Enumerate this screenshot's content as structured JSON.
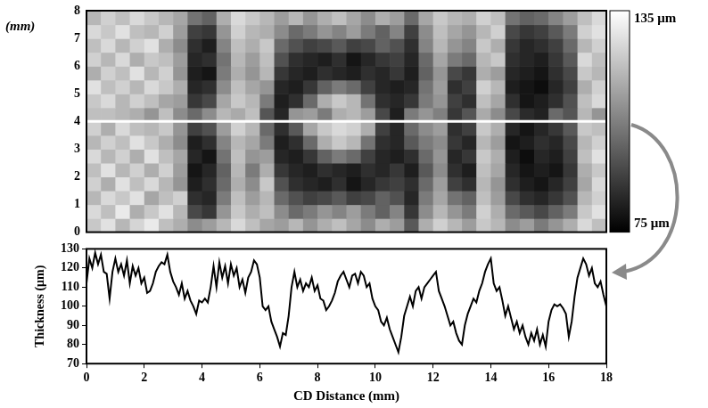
{
  "chart_data": [
    {
      "type": "heatmap",
      "ylabel": "(mm)",
      "xlim": [
        0,
        18
      ],
      "ylim": [
        0,
        8
      ],
      "yticks": [
        0,
        1,
        2,
        3,
        4,
        5,
        6,
        7,
        8
      ],
      "tick_labels": "y",
      "grid": false,
      "profile_y": 4,
      "color_range": [
        75,
        135
      ],
      "color_ticks": [
        {
          "value": 135,
          "label": "135 μm"
        },
        {
          "value": 75,
          "label": "75 μm"
        }
      ],
      "cells": [
        [
          122,
          128,
          118,
          125,
          130,
          120,
          116,
          108,
          112,
          118,
          126,
          120,
          114,
          112,
          118,
          110,
          116,
          120,
          114,
          108,
          116,
          112,
          96,
          116,
          124,
          118,
          112,
          122,
          118,
          108,
          112,
          104,
          110,
          116,
          126,
          120
        ],
        [
          126,
          120,
          130,
          116,
          122,
          128,
          118,
          92,
          88,
          110,
          122,
          116,
          120,
          108,
          100,
          104,
          110,
          106,
          112,
          104,
          98,
          106,
          88,
          108,
          118,
          110,
          104,
          124,
          116,
          100,
          96,
          92,
          98,
          104,
          122,
          128
        ],
        [
          118,
          126,
          122,
          128,
          114,
          120,
          124,
          86,
          84,
          104,
          120,
          112,
          118,
          100,
          94,
          90,
          92,
          96,
          90,
          92,
          98,
          94,
          84,
          104,
          114,
          102,
          98,
          120,
          112,
          92,
          86,
          84,
          88,
          94,
          118,
          124
        ],
        [
          124,
          116,
          128,
          120,
          126,
          118,
          110,
          82,
          86,
          100,
          116,
          108,
          122,
          94,
          86,
          84,
          82,
          86,
          80,
          84,
          88,
          90,
          86,
          100,
          112,
          90,
          86,
          118,
          110,
          86,
          82,
          80,
          84,
          90,
          114,
          126
        ],
        [
          120,
          128,
          118,
          124,
          116,
          124,
          112,
          80,
          84,
          98,
          118,
          104,
          116,
          88,
          84,
          82,
          86,
          84,
          82,
          86,
          84,
          88,
          82,
          96,
          108,
          86,
          82,
          120,
          114,
          84,
          80,
          82,
          80,
          88,
          116,
          122
        ],
        [
          126,
          118,
          124,
          116,
          128,
          120,
          114,
          84,
          80,
          102,
          120,
          110,
          112,
          84,
          82,
          88,
          98,
          104,
          100,
          90,
          84,
          82,
          86,
          100,
          110,
          84,
          88,
          122,
          116,
          82,
          78,
          84,
          82,
          90,
          120,
          128
        ],
        [
          118,
          124,
          120,
          128,
          122,
          116,
          108,
          82,
          86,
          106,
          118,
          114,
          104,
          82,
          86,
          100,
          116,
          122,
          118,
          102,
          86,
          84,
          96,
          104,
          108,
          88,
          84,
          118,
          112,
          80,
          82,
          86,
          84,
          92,
          118,
          124
        ],
        [
          124,
          116,
          126,
          120,
          118,
          122,
          110,
          90,
          94,
          112,
          124,
          118,
          100,
          86,
          96,
          114,
          122,
          126,
          124,
          116,
          90,
          84,
          100,
          108,
          112,
          86,
          90,
          122,
          116,
          84,
          80,
          84,
          88,
          96,
          122,
          120
        ],
        [
          120,
          120,
          118,
          116,
          110,
          120,
          108,
          100,
          108,
          118,
          115,
          120,
          95,
          84,
          110,
          112,
          104,
          116,
          118,
          112,
          92,
          82,
          104,
          110,
          105,
          88,
          95,
          115,
          108,
          92,
          85,
          83,
          100,
          95,
          118,
          110
        ],
        [
          122,
          126,
          118,
          124,
          120,
          114,
          112,
          88,
          92,
          114,
          122,
          118,
          104,
          82,
          86,
          100,
          116,
          122,
          118,
          102,
          86,
          84,
          88,
          104,
          110,
          90,
          86,
          120,
          114,
          86,
          80,
          82,
          86,
          94,
          120,
          126
        ],
        [
          128,
          120,
          124,
          118,
          126,
          122,
          116,
          84,
          86,
          108,
          120,
          114,
          110,
          84,
          82,
          88,
          98,
          104,
          100,
          90,
          84,
          82,
          84,
          102,
          112,
          86,
          90,
          124,
          118,
          82,
          80,
          78,
          84,
          90,
          116,
          124
        ],
        [
          116,
          124,
          120,
          128,
          118,
          124,
          110,
          82,
          80,
          104,
          116,
          110,
          118,
          88,
          84,
          82,
          86,
          84,
          82,
          86,
          84,
          88,
          82,
          98,
          110,
          92,
          88,
          116,
          112,
          84,
          82,
          80,
          86,
          92,
          122,
          118
        ],
        [
          124,
          118,
          126,
          116,
          122,
          120,
          112,
          84,
          86,
          102,
          118,
          112,
          120,
          94,
          86,
          84,
          82,
          86,
          80,
          84,
          88,
          90,
          84,
          100,
          114,
          104,
          100,
          118,
          122,
          86,
          84,
          82,
          88,
          96,
          126,
          120
        ],
        [
          120,
          126,
          118,
          124,
          128,
          116,
          108,
          86,
          82,
          106,
          120,
          116,
          122,
          100,
          94,
          90,
          92,
          96,
          90,
          92,
          98,
          94,
          86,
          106,
          118,
          110,
          106,
          122,
          116,
          88,
          84,
          86,
          90,
          100,
          118,
          124
        ],
        [
          126,
          122,
          128,
          120,
          118,
          124,
          112,
          90,
          88,
          110,
          124,
          118,
          116,
          108,
          100,
          104,
          110,
          106,
          112,
          104,
          98,
          106,
          90,
          108,
          120,
          114,
          110,
          118,
          124,
          92,
          88,
          90,
          96,
          104,
          124,
          128
        ],
        [
          118,
          124,
          120,
          126,
          122,
          118,
          114,
          102,
          98,
          116,
          126,
          122,
          118,
          112,
          118,
          110,
          116,
          120,
          114,
          108,
          116,
          112,
          100,
          114,
          122,
          118,
          116,
          124,
          120,
          102,
          98,
          100,
          106,
          112,
          120,
          126
        ]
      ]
    },
    {
      "type": "line",
      "xlabel": "CD Distance (mm)",
      "ylabel": "Thickness (μm)",
      "color": "#000000",
      "grid": false,
      "xlim": [
        0,
        18
      ],
      "xticks": [
        0,
        2,
        4,
        6,
        8,
        10,
        12,
        14,
        16,
        18
      ],
      "ylim": [
        70,
        130
      ],
      "yticks": [
        70,
        80,
        90,
        100,
        110,
        120,
        130
      ],
      "x": [
        0,
        0.1,
        0.2,
        0.3,
        0.4,
        0.5,
        0.6,
        0.7,
        0.8,
        0.9,
        1,
        1.1,
        1.2,
        1.3,
        1.4,
        1.5,
        1.6,
        1.7,
        1.8,
        1.9,
        2,
        2.1,
        2.2,
        2.3,
        2.4,
        2.5,
        2.6,
        2.7,
        2.8,
        2.9,
        3,
        3.1,
        3.2,
        3.3,
        3.4,
        3.5,
        3.6,
        3.7,
        3.8,
        3.9,
        4,
        4.1,
        4.2,
        4.3,
        4.4,
        4.5,
        4.6,
        4.7,
        4.8,
        4.9,
        5,
        5.1,
        5.2,
        5.3,
        5.4,
        5.5,
        5.6,
        5.7,
        5.8,
        5.9,
        6,
        6.1,
        6.2,
        6.3,
        6.4,
        6.5,
        6.6,
        6.7,
        6.8,
        6.9,
        7,
        7.1,
        7.2,
        7.3,
        7.4,
        7.5,
        7.6,
        7.7,
        7.8,
        7.9,
        8,
        8.1,
        8.2,
        8.3,
        8.4,
        8.5,
        8.6,
        8.7,
        8.8,
        8.9,
        9,
        9.1,
        9.2,
        9.3,
        9.4,
        9.5,
        9.6,
        9.7,
        9.8,
        9.9,
        10,
        10.1,
        10.2,
        10.3,
        10.4,
        10.5,
        10.6,
        10.7,
        10.8,
        10.9,
        11,
        11.1,
        11.2,
        11.3,
        11.4,
        11.5,
        11.6,
        11.7,
        11.8,
        11.9,
        12,
        12.1,
        12.2,
        12.3,
        12.4,
        12.5,
        12.6,
        12.7,
        12.8,
        12.9,
        13,
        13.1,
        13.2,
        13.3,
        13.4,
        13.5,
        13.6,
        13.7,
        13.8,
        13.9,
        14,
        14.1,
        14.2,
        14.3,
        14.4,
        14.5,
        14.6,
        14.7,
        14.8,
        14.9,
        15,
        15.1,
        15.2,
        15.3,
        15.4,
        15.5,
        15.6,
        15.7,
        15.8,
        15.9,
        16,
        16.1,
        16.2,
        16.3,
        16.4,
        16.5,
        16.6,
        16.7,
        16.8,
        16.9,
        17,
        17.1,
        17.2,
        17.3,
        17.4,
        17.5,
        17.6,
        17.7,
        17.8,
        17.9,
        18
      ],
      "values": [
        112,
        125,
        120,
        128,
        122,
        127,
        118,
        117,
        104,
        118,
        125,
        118,
        122,
        116,
        124,
        112,
        121,
        116,
        120,
        112,
        115,
        107,
        108,
        112,
        118,
        121,
        123,
        122,
        127,
        118,
        113,
        110,
        106,
        112,
        104,
        108,
        103,
        100,
        96,
        103,
        102,
        104,
        102,
        110,
        121,
        110,
        123,
        115,
        121,
        112,
        122,
        116,
        120,
        110,
        114,
        107,
        115,
        118,
        124,
        122,
        115,
        100,
        98,
        100,
        92,
        88,
        84,
        79,
        86,
        85,
        95,
        110,
        118,
        110,
        114,
        108,
        112,
        110,
        115,
        108,
        111,
        104,
        103,
        98,
        100,
        103,
        107,
        113,
        116,
        118,
        114,
        110,
        116,
        117,
        112,
        118,
        116,
        110,
        112,
        104,
        100,
        98,
        92,
        90,
        94,
        88,
        84,
        80,
        76,
        84,
        95,
        100,
        105,
        100,
        108,
        110,
        104,
        110,
        112,
        114,
        116,
        118,
        108,
        104,
        100,
        95,
        90,
        92,
        86,
        82,
        80,
        90,
        96,
        100,
        104,
        102,
        108,
        112,
        118,
        122,
        125,
        112,
        108,
        110,
        103,
        95,
        100,
        94,
        88,
        92,
        86,
        90,
        84,
        80,
        86,
        82,
        88,
        80,
        85,
        79,
        92,
        98,
        101,
        100,
        101,
        99,
        96,
        84,
        92,
        105,
        115,
        120,
        125,
        122,
        116,
        120,
        112,
        110,
        113,
        106,
        100
      ]
    }
  ]
}
